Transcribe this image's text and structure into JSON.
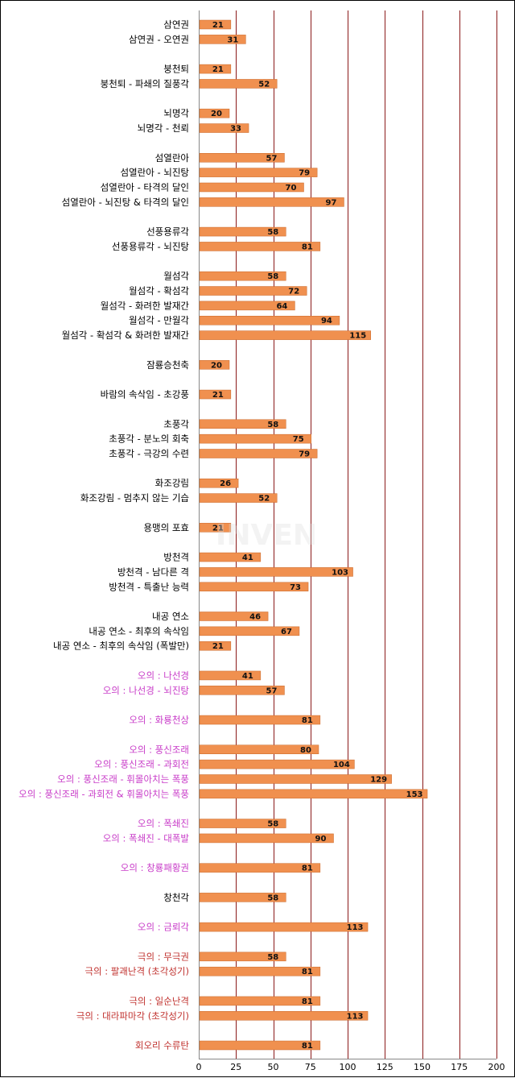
{
  "colors": {
    "bar": "#F0904F",
    "bar_stroke": "#C9682A",
    "gridline": "#8B1A1A",
    "label_default": "#000000",
    "label_magenta": "#C83CC8",
    "label_red": "#C0312E"
  },
  "chart_data": {
    "type": "bar",
    "orientation": "horizontal",
    "title": "",
    "xlabel": "",
    "ylabel": "",
    "xlim": [
      0,
      200
    ],
    "x_ticks": [
      "0",
      "25",
      "50",
      "75",
      "100",
      "125",
      "150",
      "175",
      "200"
    ],
    "grid": "vertical gridlines",
    "legend": "none",
    "watermark": "INVEN",
    "categories": [
      {
        "label": "삼연권",
        "value": 21,
        "color": "default"
      },
      {
        "label": "삼연권 - 오연권",
        "value": 31,
        "color": "default"
      },
      {
        "label": "",
        "value": null,
        "color": "default"
      },
      {
        "label": "붕천퇴",
        "value": 21,
        "color": "default"
      },
      {
        "label": "붕천퇴 - 파쇄의 질풍각",
        "value": 52,
        "color": "default"
      },
      {
        "label": "",
        "value": null,
        "color": "default"
      },
      {
        "label": "뇌명각",
        "value": 20,
        "color": "default"
      },
      {
        "label": "뇌명각 - 천뢰",
        "value": 33,
        "color": "default"
      },
      {
        "label": "",
        "value": null,
        "color": "default"
      },
      {
        "label": "섬열란아",
        "value": 57,
        "color": "default"
      },
      {
        "label": "섬열란아 - 뇌진탕",
        "value": 79,
        "color": "default"
      },
      {
        "label": "섬열란아 - 타격의 달인",
        "value": 70,
        "color": "default"
      },
      {
        "label": "섬열란아 - 뇌진탕 & 타격의 달인",
        "value": 97,
        "color": "default"
      },
      {
        "label": "",
        "value": null,
        "color": "default"
      },
      {
        "label": "선풍용류각",
        "value": 58,
        "color": "default"
      },
      {
        "label": "선풍용류각 - 뇌진탕",
        "value": 81,
        "color": "default"
      },
      {
        "label": "",
        "value": null,
        "color": "default"
      },
      {
        "label": "월섬각",
        "value": 58,
        "color": "default"
      },
      {
        "label": "월섬각 - 확섬각",
        "value": 72,
        "color": "default"
      },
      {
        "label": "월섬각 - 화려한 발재간",
        "value": 64,
        "color": "default"
      },
      {
        "label": "월섬각 - 만월각",
        "value": 94,
        "color": "default"
      },
      {
        "label": "월섬각 - 확섬각 & 화려한 발재간",
        "value": 115,
        "color": "default"
      },
      {
        "label": "",
        "value": null,
        "color": "default"
      },
      {
        "label": "잠룡승천축",
        "value": 20,
        "color": "default"
      },
      {
        "label": "",
        "value": null,
        "color": "default"
      },
      {
        "label": "바람의 속삭임 - 초강풍",
        "value": 21,
        "color": "default"
      },
      {
        "label": "",
        "value": null,
        "color": "default"
      },
      {
        "label": "초풍각",
        "value": 58,
        "color": "default"
      },
      {
        "label": "초풍각 - 분노의 회축",
        "value": 75,
        "color": "default"
      },
      {
        "label": "초풍각 - 극강의 수련",
        "value": 79,
        "color": "default"
      },
      {
        "label": "",
        "value": null,
        "color": "default"
      },
      {
        "label": "화조강림",
        "value": 26,
        "color": "default"
      },
      {
        "label": "화조강림 - 멈추지 않는 기습",
        "value": 52,
        "color": "default"
      },
      {
        "label": "",
        "value": null,
        "color": "default"
      },
      {
        "label": "용맹의 포효",
        "value": 21,
        "color": "default"
      },
      {
        "label": "",
        "value": null,
        "color": "default"
      },
      {
        "label": "방천격",
        "value": 41,
        "color": "default"
      },
      {
        "label": "방천격 - 남다른 격",
        "value": 103,
        "color": "default"
      },
      {
        "label": "방천격 - 특출난 능력",
        "value": 73,
        "color": "default"
      },
      {
        "label": "",
        "value": null,
        "color": "default"
      },
      {
        "label": "내공 연소",
        "value": 46,
        "color": "default"
      },
      {
        "label": "내공 연소 - 최후의 속삭임",
        "value": 67,
        "color": "default"
      },
      {
        "label": "내공 연소 - 최후의 속삭임 (폭발만)",
        "value": 21,
        "color": "default"
      },
      {
        "label": "",
        "value": null,
        "color": "default"
      },
      {
        "label": "오의 : 나선경",
        "value": 41,
        "color": "magenta"
      },
      {
        "label": "오의 : 나선경 - 뇌진탕",
        "value": 57,
        "color": "magenta"
      },
      {
        "label": "",
        "value": null,
        "color": "default"
      },
      {
        "label": "오의 : 화룡천상",
        "value": 81,
        "color": "magenta"
      },
      {
        "label": "",
        "value": null,
        "color": "default"
      },
      {
        "label": "오의 : 풍신조래",
        "value": 80,
        "color": "magenta"
      },
      {
        "label": "오의 : 풍신조래 - 과회전",
        "value": 104,
        "color": "magenta"
      },
      {
        "label": "오의 : 풍신조래 - 휘몰아치는 폭풍",
        "value": 129,
        "color": "magenta"
      },
      {
        "label": "오의 : 풍신조래 - 과회전 & 휘몰아치는 폭풍",
        "value": 153,
        "color": "magenta"
      },
      {
        "label": "",
        "value": null,
        "color": "default"
      },
      {
        "label": "오의 : 폭쇄진",
        "value": 58,
        "color": "magenta"
      },
      {
        "label": "오의 : 폭쇄진 - 대폭발",
        "value": 90,
        "color": "magenta"
      },
      {
        "label": "",
        "value": null,
        "color": "default"
      },
      {
        "label": "오의 : 창룡패황권",
        "value": 81,
        "color": "magenta"
      },
      {
        "label": "",
        "value": null,
        "color": "default"
      },
      {
        "label": "창천각",
        "value": 58,
        "color": "default"
      },
      {
        "label": "",
        "value": null,
        "color": "default"
      },
      {
        "label": "오의 : 금뢰각",
        "value": 113,
        "color": "magenta"
      },
      {
        "label": "",
        "value": null,
        "color": "default"
      },
      {
        "label": "극의 : 무극권",
        "value": 58,
        "color": "red"
      },
      {
        "label": "극의 : 팔괘난격 (초각성기)",
        "value": 81,
        "color": "red"
      },
      {
        "label": "",
        "value": null,
        "color": "default"
      },
      {
        "label": "극의 : 일순난격",
        "value": 81,
        "color": "red"
      },
      {
        "label": "극의 : 대라파마각 (초각성기)",
        "value": 113,
        "color": "red"
      },
      {
        "label": "",
        "value": null,
        "color": "default"
      },
      {
        "label": "회오리 수류탄",
        "value": 81,
        "color": "red"
      }
    ]
  }
}
